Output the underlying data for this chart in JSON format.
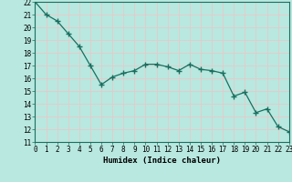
{
  "x": [
    0,
    1,
    2,
    3,
    4,
    5,
    6,
    7,
    8,
    9,
    10,
    11,
    12,
    13,
    14,
    15,
    16,
    17,
    18,
    19,
    20,
    21,
    22,
    23
  ],
  "y": [
    22.0,
    21.0,
    20.5,
    19.5,
    18.5,
    17.0,
    15.5,
    16.1,
    16.4,
    16.6,
    17.1,
    17.1,
    16.9,
    16.6,
    17.1,
    16.7,
    16.6,
    16.4,
    14.6,
    14.9,
    13.3,
    13.6,
    12.2,
    11.8
  ],
  "xlabel": "Humidex (Indice chaleur)",
  "xlim": [
    0,
    23
  ],
  "ylim": [
    11,
    22
  ],
  "yticks": [
    11,
    12,
    13,
    14,
    15,
    16,
    17,
    18,
    19,
    20,
    21,
    22
  ],
  "xticks": [
    0,
    1,
    2,
    3,
    4,
    5,
    6,
    7,
    8,
    9,
    10,
    11,
    12,
    13,
    14,
    15,
    16,
    17,
    18,
    19,
    20,
    21,
    22,
    23
  ],
  "xtick_labels": [
    "0",
    "1",
    "2",
    "3",
    "4",
    "5",
    "6",
    "7",
    "8",
    "9",
    "10",
    "11",
    "12",
    "13",
    "14",
    "15",
    "16",
    "17",
    "18",
    "19",
    "20",
    "21",
    "22",
    "23"
  ],
  "line_color": "#1a6e5e",
  "marker": "+",
  "bg_color": "#b8e8e0",
  "grid_color": "#e8c8c8",
  "xlabel_fontsize": 6.5,
  "tick_fontsize": 5.5,
  "line_width": 0.9,
  "marker_size": 4,
  "marker_edge_width": 1.0
}
